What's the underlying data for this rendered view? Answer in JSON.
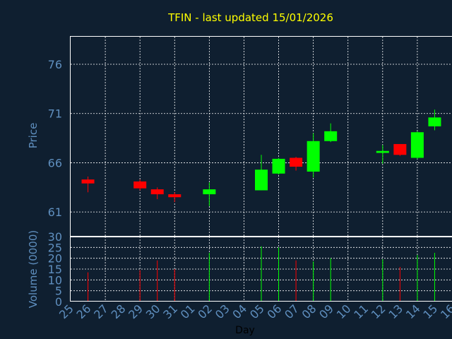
{
  "colors": {
    "background": "#0f1f30",
    "title": "#ffff00",
    "axis_text": "#5f8fbf",
    "frame": "#ffffff",
    "grid": "#ffffff",
    "up": "#00ff00",
    "down": "#ff0000"
  },
  "chart_data": {
    "type": "candlestick",
    "title": "TFIN - last updated 15/01/2026",
    "xlabel": "Day",
    "x_ticks": [
      "25",
      "26",
      "27",
      "28",
      "29",
      "30",
      "31",
      "01",
      "02",
      "03",
      "04",
      "05",
      "06",
      "07",
      "08",
      "09",
      "10",
      "11",
      "12",
      "13",
      "14",
      "15",
      "16"
    ],
    "price_panel": {
      "ylabel": "Price",
      "y_ticks": [
        61,
        66,
        71,
        76
      ],
      "ylim": [
        58.5,
        78.8
      ],
      "grid": true
    },
    "volume_panel": {
      "ylabel": "Volume (0000)",
      "y_ticks": [
        0,
        5,
        10,
        15,
        20,
        25,
        30
      ],
      "ylim": [
        0,
        30
      ],
      "grid": true
    },
    "candles": [
      {
        "day": "26",
        "open": 64.3,
        "high": 64.6,
        "low": 63.0,
        "close": 63.9,
        "volume": 13.5
      },
      {
        "day": "29",
        "open": 64.1,
        "high": 64.3,
        "low": 63.2,
        "close": 63.4,
        "volume": 14.5
      },
      {
        "day": "30",
        "open": 63.3,
        "high": 63.5,
        "low": 62.3,
        "close": 62.8,
        "volume": 19.0
      },
      {
        "day": "31",
        "open": 62.8,
        "high": 63.0,
        "low": 62.0,
        "close": 62.5,
        "volume": 15.0
      },
      {
        "day": "02",
        "open": 62.8,
        "high": 64.0,
        "low": 61.6,
        "close": 63.3,
        "volume": 22.5
      },
      {
        "day": "05",
        "open": 63.2,
        "high": 66.8,
        "low": 63.2,
        "close": 65.3,
        "volume": 25.5
      },
      {
        "day": "06",
        "open": 64.9,
        "high": 66.5,
        "low": 64.8,
        "close": 66.4,
        "volume": 25.0
      },
      {
        "day": "07",
        "open": 66.5,
        "high": 66.6,
        "low": 65.2,
        "close": 65.6,
        "volume": 19.0
      },
      {
        "day": "08",
        "open": 65.1,
        "high": 69.0,
        "low": 64.5,
        "close": 68.2,
        "volume": 18.5
      },
      {
        "day": "09",
        "open": 68.2,
        "high": 70.0,
        "low": 68.1,
        "close": 69.2,
        "volume": 20.0
      },
      {
        "day": "12",
        "open": 67.0,
        "high": 67.8,
        "low": 65.9,
        "close": 67.2,
        "volume": 19.5
      },
      {
        "day": "13",
        "open": 67.9,
        "high": 67.9,
        "low": 66.7,
        "close": 66.8,
        "volume": 16.0
      },
      {
        "day": "14",
        "open": 66.5,
        "high": 69.2,
        "low": 66.4,
        "close": 69.1,
        "volume": 21.5
      },
      {
        "day": "15",
        "open": 69.7,
        "high": 71.4,
        "low": 69.3,
        "close": 70.6,
        "volume": 22.5
      }
    ]
  }
}
